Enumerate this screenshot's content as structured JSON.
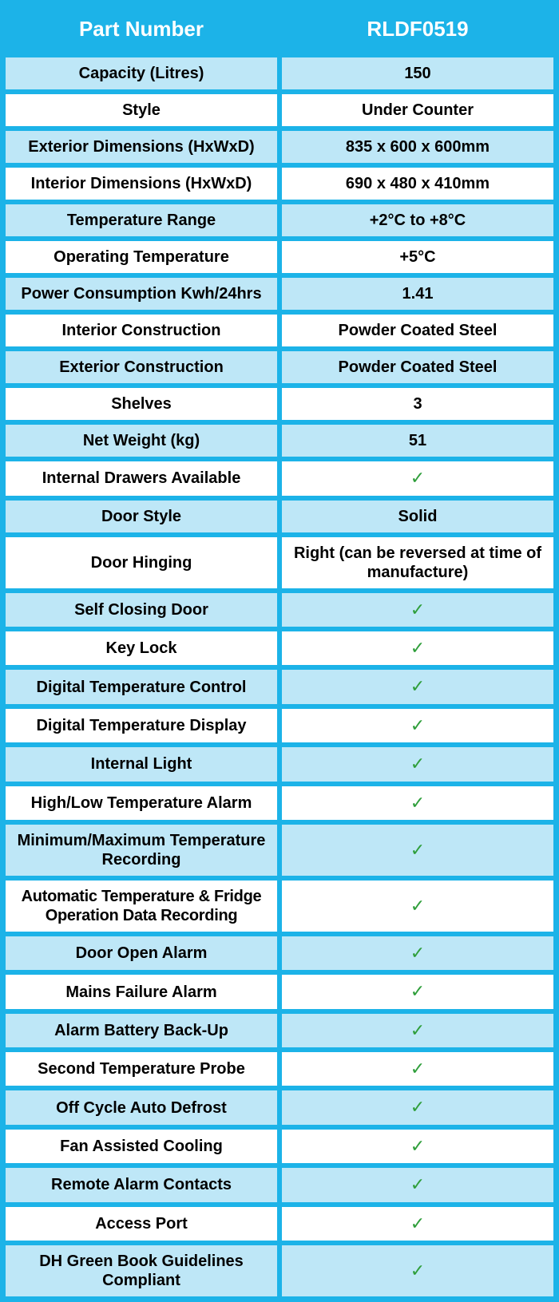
{
  "header": {
    "label_col": "Part Number",
    "value_col": "RLDF0519"
  },
  "colors": {
    "border": "#1cb3e8",
    "header_bg": "#1cb3e8",
    "header_text": "#ffffff",
    "row_alt_bg": "#bee7f7",
    "row_bg": "#ffffff",
    "text": "#000000",
    "check": "#2e9e3a"
  },
  "rows": [
    {
      "label": "Capacity (Litres)",
      "value": "150",
      "alt": true
    },
    {
      "label": "Style",
      "value": "Under Counter",
      "alt": false
    },
    {
      "label": "Exterior Dimensions (HxWxD)",
      "value": "835 x 600 x 600mm",
      "alt": true,
      "multiline_label": true
    },
    {
      "label": "Interior Dimensions (HxWxD)",
      "value": "690 x 480 x 410mm",
      "alt": false,
      "multiline_label": true
    },
    {
      "label": "Temperature Range",
      "value": "+2°C to +8°C",
      "alt": true
    },
    {
      "label": "Operating Temperature",
      "value": "+5°C",
      "alt": false
    },
    {
      "label": "Power Consumption Kwh/24hrs",
      "value": "1.41",
      "alt": true,
      "multiline_label": true
    },
    {
      "label": "Interior Construction",
      "value": "Powder Coated Steel",
      "alt": false
    },
    {
      "label": "Exterior Construction",
      "value": "Powder Coated Steel",
      "alt": true
    },
    {
      "label": "Shelves",
      "value": "3",
      "alt": false
    },
    {
      "label": "Net Weight (kg)",
      "value": "51",
      "alt": true
    },
    {
      "label": "Internal Drawers Available",
      "value": "✓",
      "alt": false,
      "check": true
    },
    {
      "label": "Door Style",
      "value": "Solid",
      "alt": true
    },
    {
      "label": "Door Hinging",
      "value": "Right (can be reversed at time of manufacture)",
      "alt": false,
      "multiline_value": true
    },
    {
      "label": "Self Closing Door",
      "value": "✓",
      "alt": true,
      "check": true
    },
    {
      "label": "Key Lock",
      "value": "✓",
      "alt": false,
      "check": true
    },
    {
      "label": "Digital Temperature Control",
      "value": "✓",
      "alt": true,
      "check": true
    },
    {
      "label": "Digital Temperature Display",
      "value": "✓",
      "alt": false,
      "check": true
    },
    {
      "label": "Internal Light",
      "value": "✓",
      "alt": true,
      "check": true
    },
    {
      "label": "High/Low Temperature Alarm",
      "value": "✓",
      "alt": false,
      "check": true
    },
    {
      "label": "Minimum/Maximum Temperature Recording",
      "value": "✓",
      "alt": true,
      "check": true,
      "multiline_label": true
    },
    {
      "label": "Automatic Temperature & Fridge Operation Data Recording",
      "value": "✓",
      "alt": false,
      "check": true,
      "multiline_label": true,
      "tight": true
    },
    {
      "label": "Door Open Alarm",
      "value": "✓",
      "alt": true,
      "check": true
    },
    {
      "label": "Mains Failure Alarm",
      "value": "✓",
      "alt": false,
      "check": true
    },
    {
      "label": "Alarm Battery Back-Up",
      "value": "✓",
      "alt": true,
      "check": true
    },
    {
      "label": "Second Temperature Probe",
      "value": "✓",
      "alt": false,
      "check": true
    },
    {
      "label": "Off Cycle Auto Defrost",
      "value": "✓",
      "alt": true,
      "check": true
    },
    {
      "label": "Fan Assisted Cooling",
      "value": "✓",
      "alt": false,
      "check": true
    },
    {
      "label": "Remote Alarm Contacts",
      "value": "✓",
      "alt": true,
      "check": true
    },
    {
      "label": "Access Port",
      "value": "✓",
      "alt": false,
      "check": true
    },
    {
      "label": "DH Green Book Guidelines Compliant",
      "value": "✓",
      "alt": true,
      "check": true,
      "multiline_label": true
    }
  ]
}
